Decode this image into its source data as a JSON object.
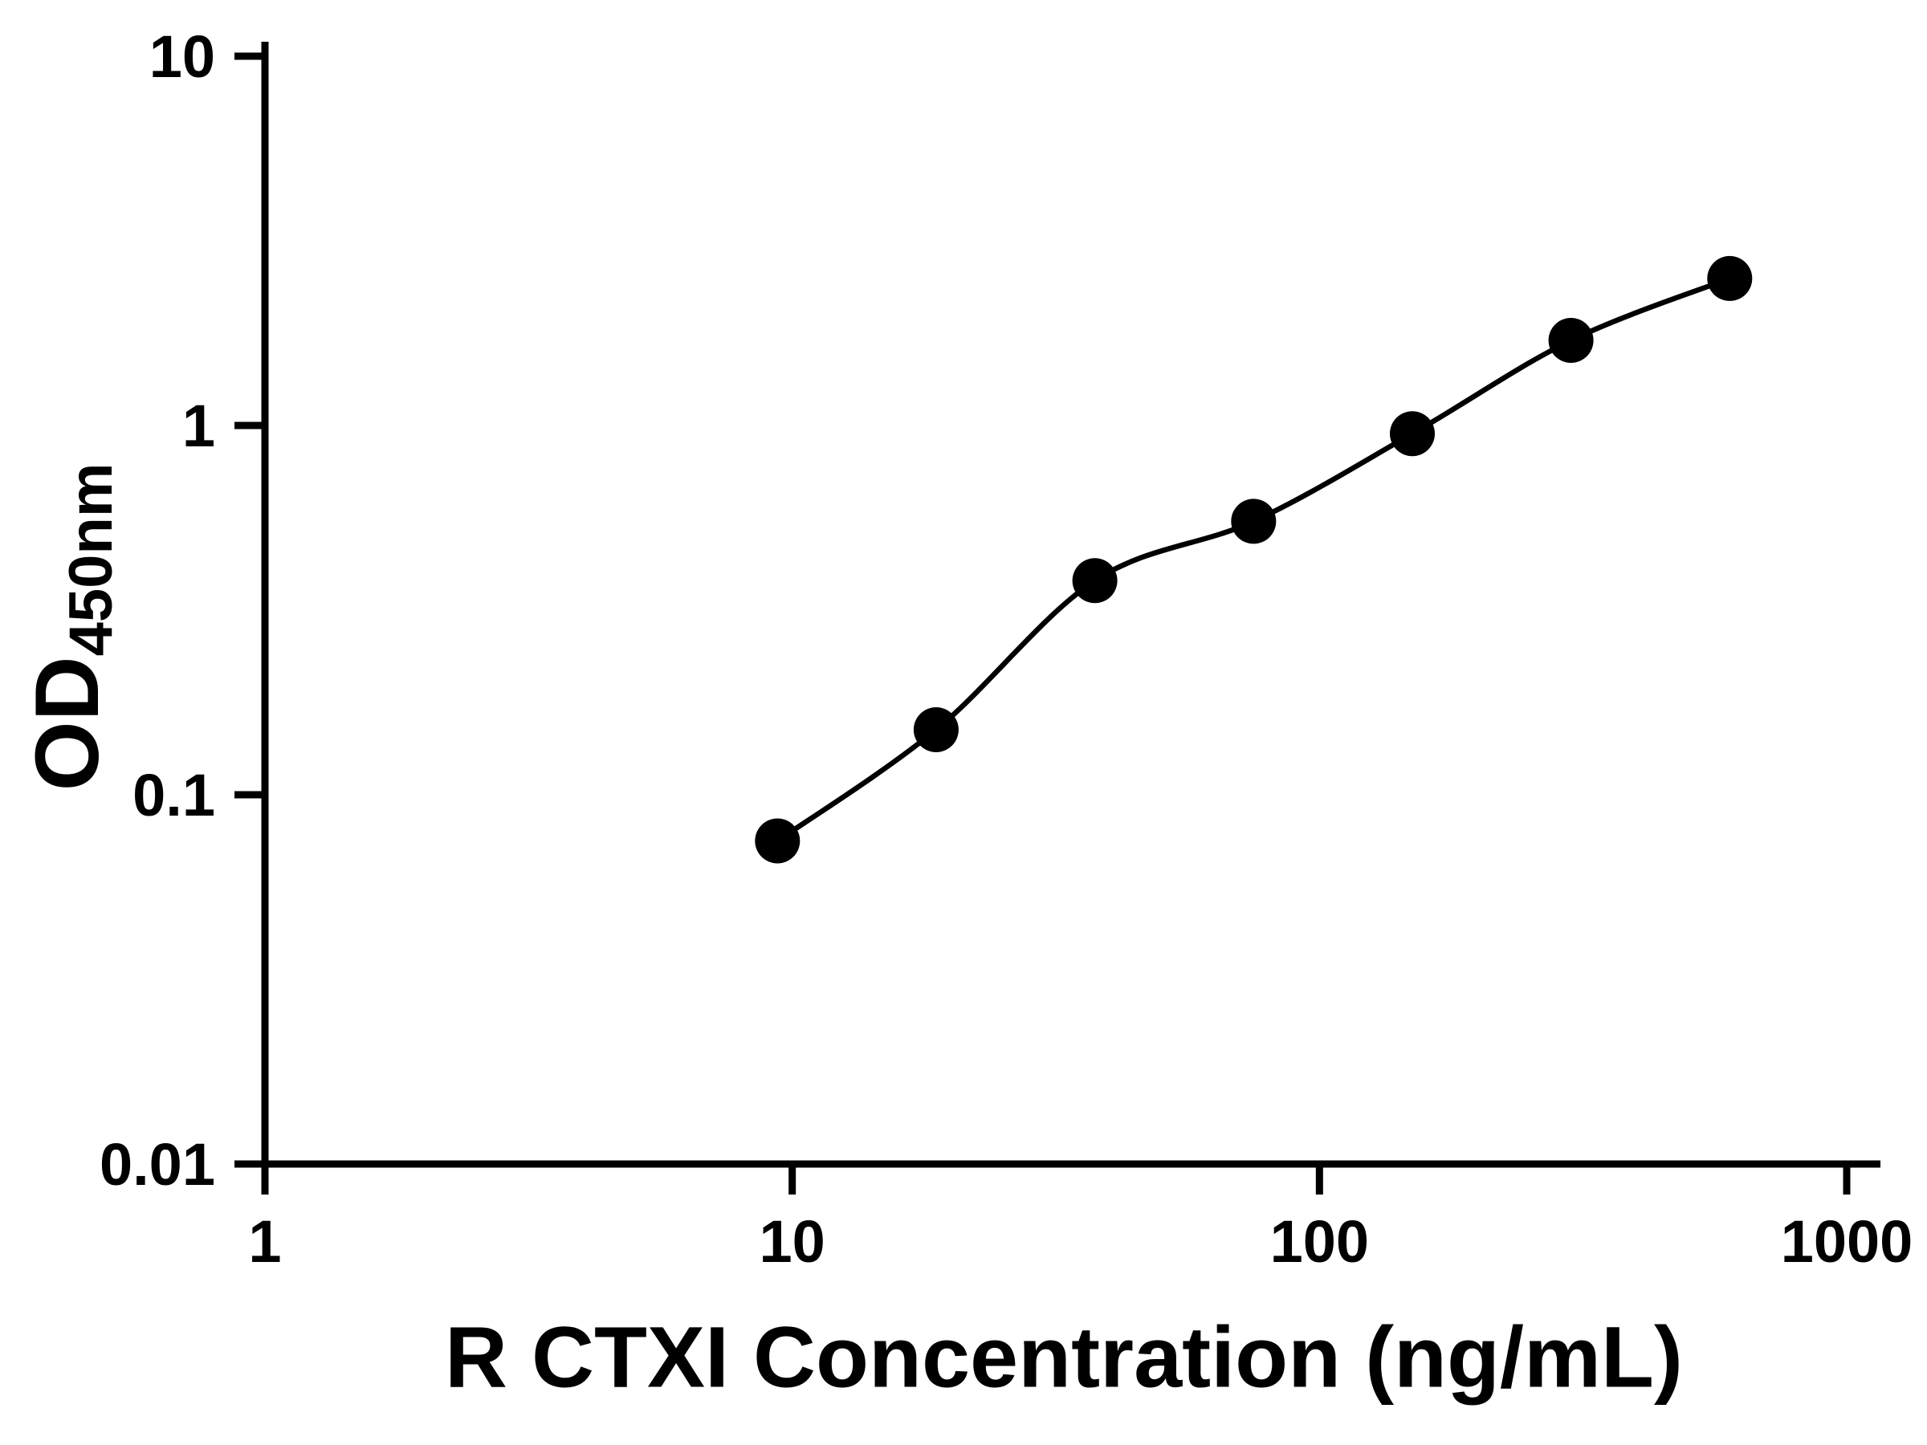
{
  "figure": {
    "background": "#ffffff"
  },
  "labels": {
    "x_label": "R CTXI Concentration (ng/mL)",
    "y_label_main": "OD",
    "y_label_sub": "450nm"
  },
  "chart_data": {
    "type": "scatter",
    "title": "",
    "xlabel": "R CTXI Concentration (ng/mL)",
    "ylabel": "OD450nm",
    "x": [
      9.375,
      18.75,
      37.5,
      75,
      150,
      300,
      600
    ],
    "y": [
      0.075,
      0.15,
      0.38,
      0.55,
      0.95,
      1.7,
      2.5
    ],
    "fit": "smooth standard-curve fit through points",
    "xscale": "log",
    "yscale": "log",
    "xlim": [
      1,
      1000
    ],
    "ylim": [
      0.01,
      10
    ],
    "x_ticks": [
      1,
      10,
      100,
      1000
    ],
    "y_ticks": [
      0.01,
      0.1,
      1,
      10
    ],
    "grid": false,
    "legend": "none",
    "marker_color": "#000000",
    "line_color": "#000000",
    "axis_color": "#000000"
  }
}
